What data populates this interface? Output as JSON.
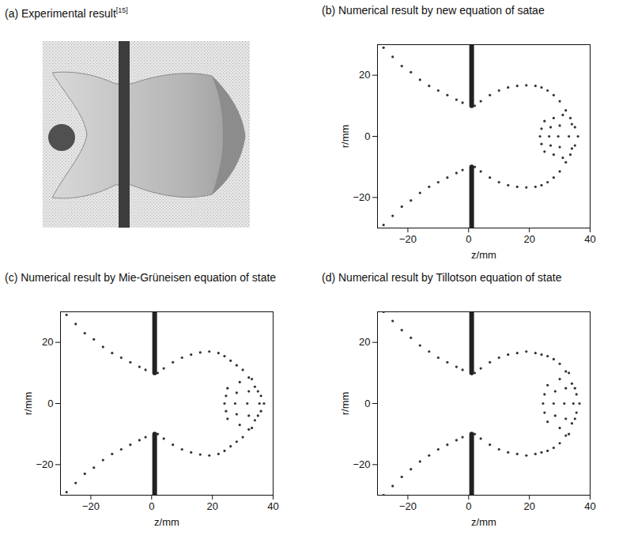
{
  "chart_data": [
    {
      "type": "photo",
      "title": "(a) Experimental result[15]"
    },
    {
      "type": "scatter",
      "title": "(b) Numerical result by new equation of satae",
      "x_label": "z/mm",
      "y_label": "r/mm",
      "xlim": [
        -30,
        40
      ],
      "ylim": [
        -30,
        30
      ],
      "xticks": [
        -20,
        0,
        20,
        40
      ],
      "yticks": [
        -20,
        0,
        20
      ],
      "series": [
        {
          "type": "line",
          "color": "#222222",
          "x": [
            1,
            1,
            1,
            1,
            1
          ],
          "values": [
            30,
            10,
            null,
            -10,
            -30
          ]
        },
        {
          "type": "scatter",
          "color": "#333333",
          "x": [
            -28,
            -25,
            -22,
            -19,
            -16,
            -13,
            -10,
            -7,
            -4,
            -2,
            -28,
            -25,
            -22,
            -19,
            -16,
            -13,
            -10,
            -7,
            -4,
            -2,
            2,
            4,
            7,
            10,
            13,
            16,
            19,
            22,
            24,
            26,
            28,
            30,
            32,
            33.5,
            35,
            2,
            4,
            7,
            10,
            13,
            16,
            19,
            22,
            24,
            26,
            28,
            30,
            32,
            33.5,
            35,
            36,
            31,
            30,
            29.5,
            30,
            31,
            28,
            27,
            26.5,
            27,
            28,
            25,
            24,
            23.5,
            24,
            25,
            34,
            33,
            34
          ],
          "values": [
            29,
            26,
            23,
            21,
            18.5,
            16.5,
            15,
            13.5,
            12,
            11,
            -29,
            -26,
            -23,
            -21,
            -18.5,
            -16.5,
            -15,
            -13.5,
            -12,
            -11,
            10,
            11.5,
            13.5,
            15,
            16,
            16.5,
            16.7,
            16.5,
            16,
            15,
            13.5,
            11.5,
            8.5,
            6,
            3,
            -10,
            -11.5,
            -13.5,
            -15,
            -16,
            -16.5,
            -16.7,
            -16.5,
            -16,
            -15,
            -13.5,
            -11.5,
            -8.5,
            -6,
            -3,
            0,
            7,
            3.5,
            0,
            -3.5,
            -7,
            6,
            3,
            0,
            -3,
            -6,
            5,
            2.5,
            0,
            -2.5,
            -5,
            4,
            0,
            -4
          ]
        }
      ]
    },
    {
      "type": "scatter",
      "title": "(c) Numerical result by Mie-Grüneisen equation of state",
      "x_label": "z/mm",
      "y_label": "r/mm",
      "xlim": [
        -30,
        40
      ],
      "ylim": [
        -30,
        30
      ],
      "xticks": [
        -20,
        0,
        20,
        40
      ],
      "yticks": [
        -20,
        0,
        20
      ],
      "series": [
        {
          "type": "line",
          "color": "#222222",
          "x": [
            1,
            1,
            1,
            1,
            1
          ],
          "values": [
            30,
            10,
            null,
            -10,
            -30
          ]
        },
        {
          "type": "scatter",
          "color": "#333333",
          "x": [
            -28,
            -25,
            -22,
            -19,
            -16,
            -13,
            -10,
            -7,
            -4,
            -2,
            -28,
            -25,
            -22,
            -19,
            -16,
            -13,
            -10,
            -7,
            -4,
            -2,
            2,
            4,
            7,
            10,
            13,
            16,
            19,
            22,
            24,
            26,
            28,
            30,
            32,
            34,
            36,
            2,
            4,
            7,
            10,
            13,
            16,
            19,
            22,
            24,
            26,
            28,
            30,
            32,
            34,
            36,
            37,
            33,
            32,
            31.5,
            32,
            33,
            29,
            28,
            27.5,
            28,
            29,
            25,
            24.5,
            24,
            24.5,
            25,
            35,
            35.5,
            35
          ],
          "values": [
            29,
            26,
            23,
            21,
            18.5,
            16.5,
            15,
            13.5,
            12,
            11,
            -29,
            -26,
            -23,
            -21,
            -18.5,
            -16.5,
            -15,
            -13.5,
            -12,
            -11,
            10,
            11.5,
            13.5,
            15,
            16,
            16.7,
            17,
            16.5,
            15.5,
            14,
            12.5,
            11,
            8.5,
            5.5,
            2.5,
            -10,
            -11.5,
            -13.5,
            -15,
            -16,
            -16.7,
            -17,
            -16.5,
            -15.5,
            -14,
            -12.5,
            -11,
            -8.5,
            -5.5,
            -2.5,
            0,
            8,
            4,
            0,
            -4,
            -8,
            7,
            3.5,
            0,
            -3.5,
            -7,
            5,
            2.5,
            0,
            -2.5,
            -5,
            4,
            0,
            -4
          ]
        }
      ]
    },
    {
      "type": "scatter",
      "title": "(d) Numerical result by Tillotson equation of state",
      "x_label": "z/mm",
      "y_label": "r/mm",
      "xlim": [
        -30,
        40
      ],
      "ylim": [
        -30,
        30
      ],
      "xticks": [
        -20,
        0,
        20,
        40
      ],
      "yticks": [
        -20,
        0,
        20
      ],
      "series": [
        {
          "type": "line",
          "color": "#222222",
          "x": [
            1,
            1,
            1,
            1,
            1
          ],
          "values": [
            30,
            10,
            null,
            -10,
            -30
          ]
        },
        {
          "type": "scatter",
          "color": "#333333",
          "x": [
            -28,
            -25,
            -22,
            -19,
            -16,
            -13,
            -10,
            -7,
            -4,
            -2,
            -28,
            -25,
            -22,
            -19,
            -16,
            -13,
            -10,
            -7,
            -4,
            -2,
            2,
            4,
            7,
            10,
            13,
            16,
            19,
            22,
            24,
            26,
            28,
            30,
            32,
            34,
            35.5,
            2,
            4,
            7,
            10,
            13,
            16,
            19,
            22,
            24,
            26,
            28,
            30,
            32,
            34,
            35.5,
            36.5,
            33,
            32,
            31.5,
            32,
            33,
            30,
            28.5,
            28,
            28.5,
            30,
            26,
            25,
            24.5,
            25,
            26,
            35,
            34.5,
            35
          ],
          "values": [
            30,
            27,
            24,
            21.5,
            19,
            17,
            15,
            13.5,
            12,
            11,
            -30,
            -27,
            -24,
            -21.5,
            -19,
            -17,
            -15,
            -13.5,
            -12,
            -11,
            10,
            11.5,
            13.5,
            15,
            16,
            16.5,
            17,
            16.5,
            16,
            15.5,
            14.5,
            13,
            10.5,
            6.5,
            3,
            -10,
            -11.5,
            -13.5,
            -15,
            -16,
            -16.5,
            -17,
            -16.5,
            -16,
            -15.5,
            -14.5,
            -13,
            -10.5,
            -6.5,
            -3,
            0,
            10,
            5,
            0,
            -5,
            -10,
            8,
            4,
            0,
            -4,
            -8,
            6,
            3,
            0,
            -3,
            -6,
            5,
            0,
            -5
          ]
        }
      ]
    }
  ]
}
